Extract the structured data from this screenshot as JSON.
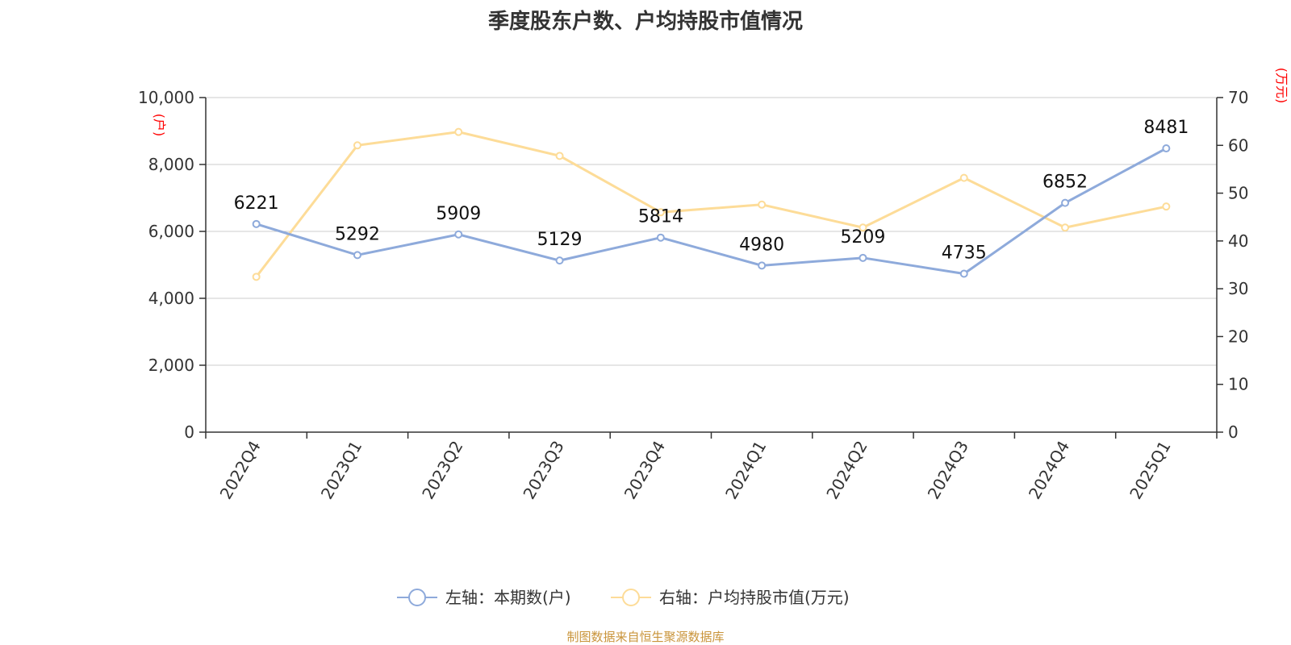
{
  "title": "季度股东户数、户均持股市值情况",
  "source": "制图数据来自恒生聚源数据库",
  "colors": {
    "left_series": "#8eaadb",
    "right_series": "#fddc98",
    "grid": "#cccccc",
    "axis": "#333333",
    "unit": "#ff0000"
  },
  "chart_data": {
    "type": "line",
    "categories": [
      "2022Q4",
      "2023Q1",
      "2023Q2",
      "2023Q3",
      "2023Q4",
      "2024Q1",
      "2024Q2",
      "2024Q3",
      "2024Q4",
      "2025Q1"
    ],
    "left_axis": {
      "unit": "(户)",
      "ylim": [
        0,
        10000
      ],
      "ticks": [
        "0",
        "2,000",
        "4,000",
        "6,000",
        "8,000",
        "10,000"
      ]
    },
    "right_axis": {
      "unit": "(万元)",
      "ylim": [
        0,
        70
      ],
      "ticks": [
        "0",
        "10",
        "20",
        "30",
        "40",
        "50",
        "60",
        "70"
      ]
    },
    "series": [
      {
        "name": "左轴：本期数(户)",
        "axis": "left",
        "values": [
          6221,
          5292,
          5909,
          5129,
          5814,
          4980,
          5209,
          4735,
          6852,
          8481
        ],
        "labels": [
          "6221",
          "5292",
          "5909",
          "5129",
          "5814",
          "4980",
          "5209",
          "4735",
          "6852",
          "8481"
        ]
      },
      {
        "name": "右轴：户均持股市值(万元)",
        "axis": "right",
        "values": [
          32.5,
          60.0,
          62.8,
          57.8,
          46.0,
          47.6,
          42.8,
          53.2,
          42.8,
          47.2
        ]
      }
    ],
    "grid": true,
    "legend_position": "bottom-center"
  }
}
